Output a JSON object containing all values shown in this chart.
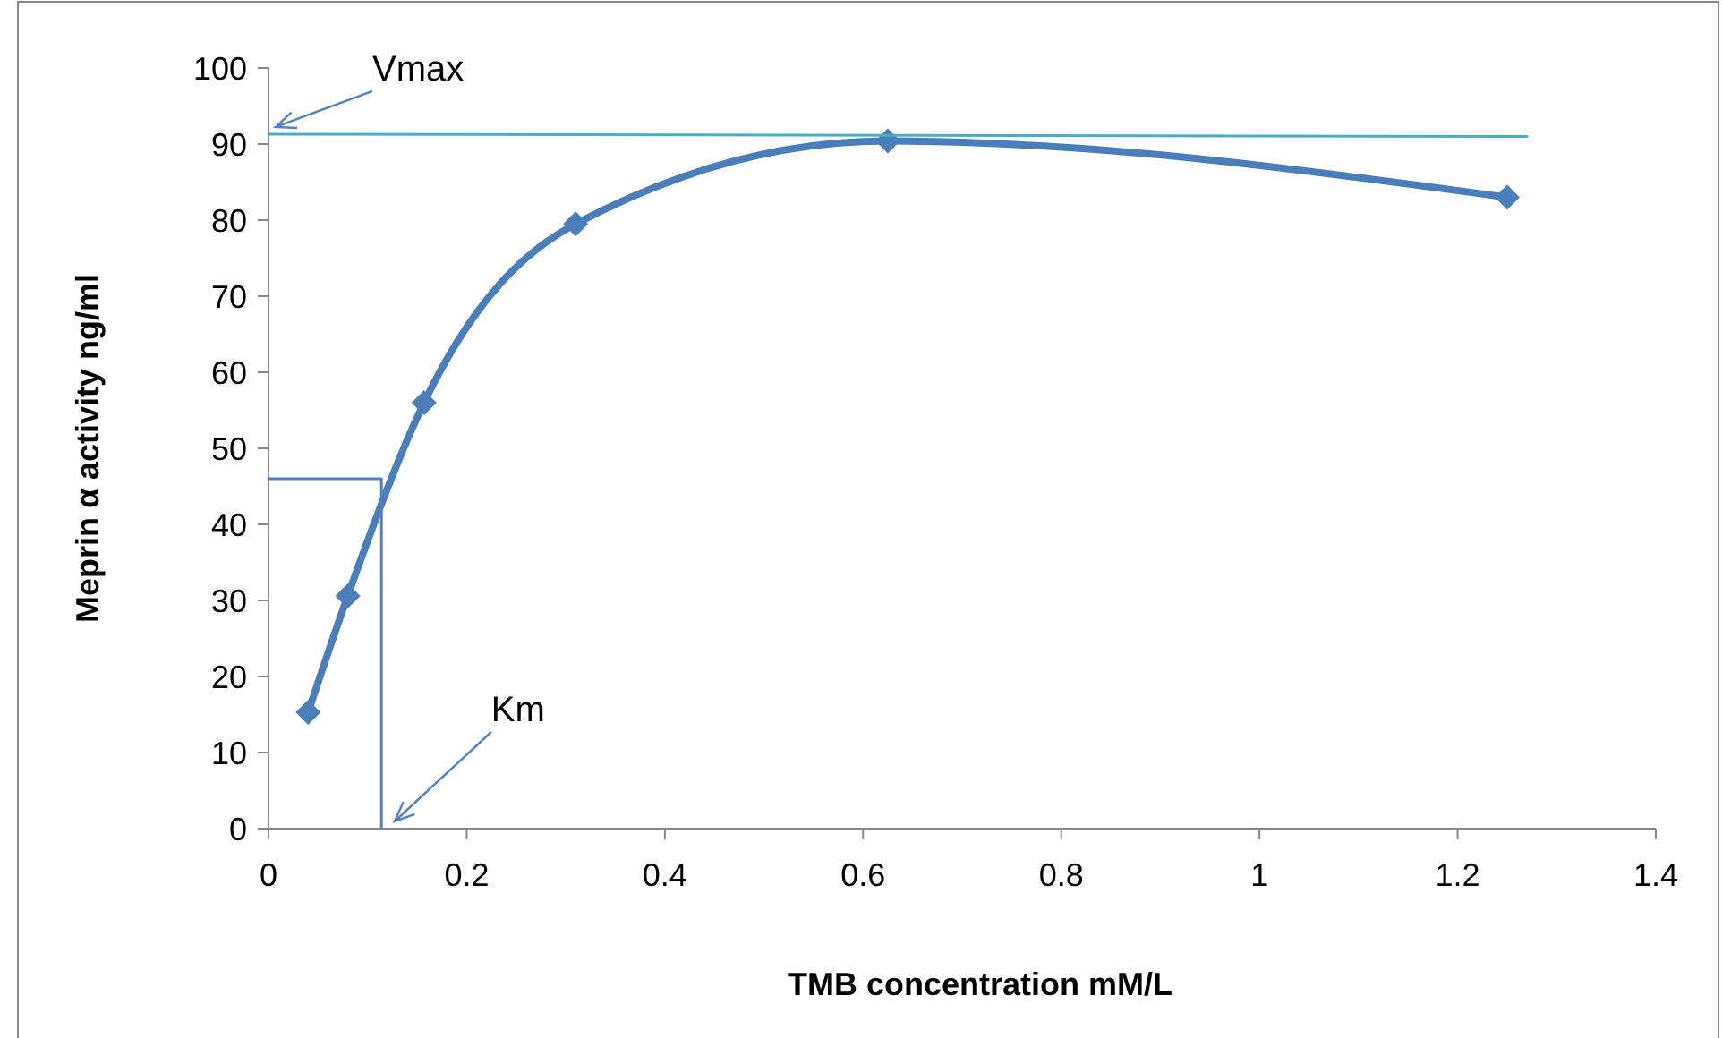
{
  "chart_data": {
    "type": "line",
    "xlabel": "TMB concentration mM/L",
    "ylabel": "Meprin α activity ng/ml",
    "xlim": [
      0,
      1.4
    ],
    "xticks": [
      0,
      0.2,
      0.4,
      0.6,
      0.8,
      1,
      1.2,
      1.4
    ],
    "ylim": [
      0,
      100
    ],
    "yticks": [
      0,
      10,
      20,
      30,
      40,
      50,
      60,
      70,
      80,
      90,
      100
    ],
    "grid": false,
    "series": [
      {
        "color": "#4a7ebb",
        "marker": "diamond",
        "x": [
          0.04,
          0.08,
          0.157,
          0.31,
          0.625,
          1.25
        ],
        "values": [
          15.3,
          30.6,
          56,
          79.5,
          90.4,
          83
        ]
      },
      {
        "color": "#4bacc6",
        "marker": "none",
        "x": [
          0,
          1.27
        ],
        "values": [
          91.3,
          91
        ]
      },
      {
        "color": "#4f81bd",
        "marker": "none",
        "x": [
          0,
          0.114,
          0.114
        ],
        "values": [
          46,
          46,
          0
        ]
      }
    ],
    "annotations": [
      {
        "text": "Vmax",
        "x": 0,
        "y": 91.3
      },
      {
        "text": "Km",
        "x": 0.12,
        "y": 0
      }
    ]
  }
}
